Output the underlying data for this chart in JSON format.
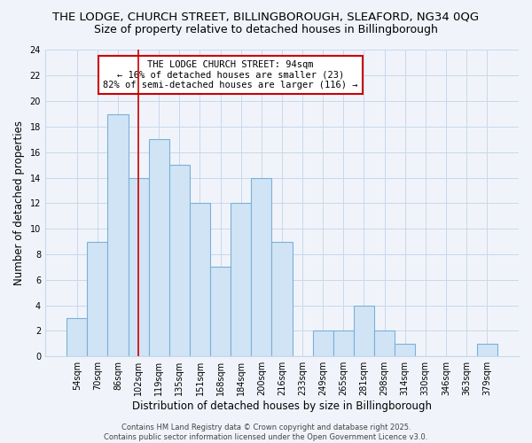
{
  "title1": "THE LODGE, CHURCH STREET, BILLINGBOROUGH, SLEAFORD, NG34 0QG",
  "title2": "Size of property relative to detached houses in Billingborough",
  "xlabel": "Distribution of detached houses by size in Billingborough",
  "ylabel": "Number of detached properties",
  "bins": [
    "54sqm",
    "70sqm",
    "86sqm",
    "102sqm",
    "119sqm",
    "135sqm",
    "151sqm",
    "168sqm",
    "184sqm",
    "200sqm",
    "216sqm",
    "233sqm",
    "249sqm",
    "265sqm",
    "281sqm",
    "298sqm",
    "314sqm",
    "330sqm",
    "346sqm",
    "363sqm",
    "379sqm"
  ],
  "values": [
    3,
    9,
    19,
    14,
    17,
    15,
    12,
    7,
    12,
    14,
    9,
    0,
    2,
    2,
    4,
    2,
    1,
    0,
    0,
    0,
    1
  ],
  "bar_color": "#d0e4f5",
  "bar_edge_color": "#7ab0d8",
  "bar_linewidth": 0.8,
  "red_line_x": 3.0,
  "annotation_text": "THE LODGE CHURCH STREET: 94sqm\n← 16% of detached houses are smaller (23)\n82% of semi-detached houses are larger (116) →",
  "annotation_box_color": "#ffffff",
  "annotation_box_edge": "#cc0000",
  "red_line_color": "#cc0000",
  "grid_color": "#c8d8ec",
  "background_color": "#f0f4fa",
  "ylim": [
    0,
    24
  ],
  "yticks": [
    0,
    2,
    4,
    6,
    8,
    10,
    12,
    14,
    16,
    18,
    20,
    22,
    24
  ],
  "footer": "Contains HM Land Registry data © Crown copyright and database right 2025.\nContains public sector information licensed under the Open Government Licence v3.0.",
  "title_fontsize": 9.5,
  "subtitle_fontsize": 9.0,
  "axis_label_fontsize": 8.5,
  "tick_fontsize": 7.0,
  "annotation_fontsize": 7.5,
  "footer_fontsize": 6.0
}
